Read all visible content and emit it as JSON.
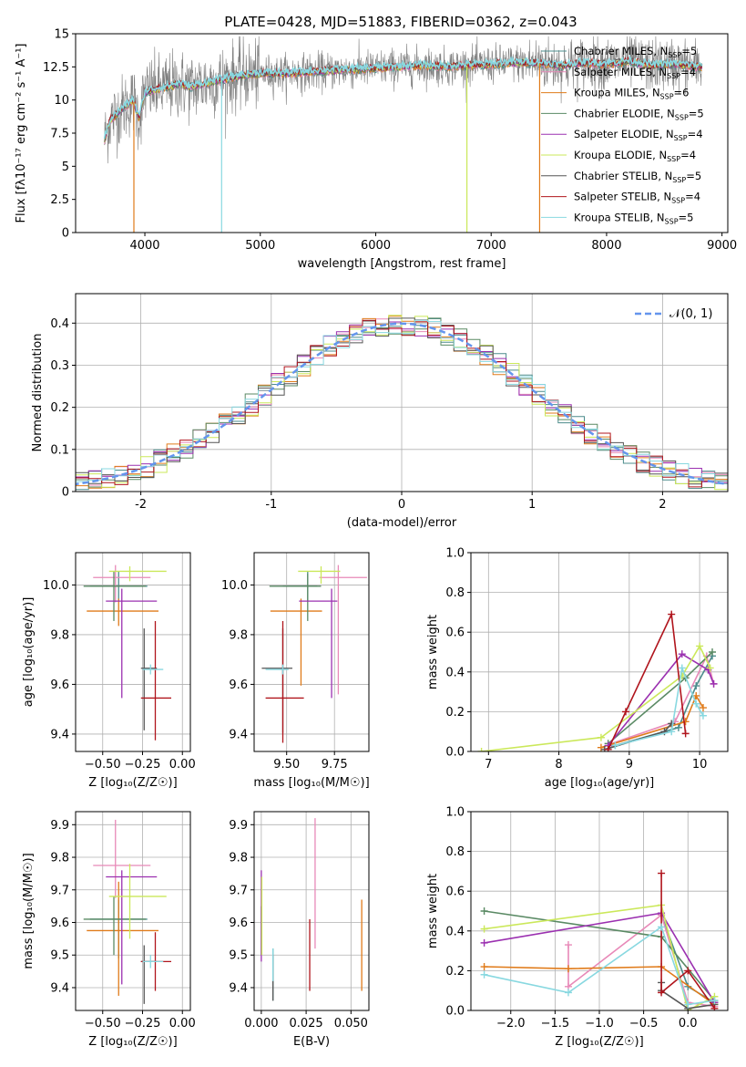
{
  "figure": {
    "title": "PLATE=0428, MJD=51883, FIBERID=0362, z=0.043"
  },
  "colors": {
    "grid": "#b0b0b0",
    "gaussian": "#6495ed"
  },
  "models": [
    {
      "name": "Chabrier MILES",
      "nssp": "5",
      "color": "#4c8c8c"
    },
    {
      "name": "Salpeter MILES",
      "nssp": "4",
      "color": "#e889b8"
    },
    {
      "name": "Kroupa MILES",
      "nssp": "6",
      "color": "#e07b1a"
    },
    {
      "name": "Chabrier ELODIE",
      "nssp": "5",
      "color": "#5a8a64"
    },
    {
      "name": "Salpeter ELODIE",
      "nssp": "4",
      "color": "#9b30b0"
    },
    {
      "name": "Kroupa ELODIE",
      "nssp": "4",
      "color": "#cbe85a"
    },
    {
      "name": "Chabrier STELIB",
      "nssp": "5",
      "color": "#555555"
    },
    {
      "name": "Salpeter STELIB",
      "nssp": "4",
      "color": "#b0141c"
    },
    {
      "name": "Kroupa STELIB",
      "nssp": "5",
      "color": "#88d8e0"
    }
  ],
  "chart_data": [
    {
      "id": "spectrum",
      "type": "line",
      "xlabel": "wavelength [Angstrom, rest frame]",
      "ylabel": "Flux [fλ10⁻¹⁷ erg cm⁻² s⁻¹ A⁻¹]",
      "xlim": [
        3400,
        9050
      ],
      "ylim": [
        0,
        15
      ],
      "xticks": [
        4000,
        5000,
        6000,
        7000,
        8000,
        9000
      ],
      "yticks": [
        0.0,
        2.5,
        5.0,
        7.5,
        10.0,
        12.5,
        15.0
      ],
      "grid": false,
      "legend": "upper right",
      "data_trend": {
        "x": [
          3650,
          3700,
          3800,
          3900,
          3950,
          4000,
          4100,
          4200,
          4300,
          4400,
          4600,
          4800,
          5000,
          5200,
          5400,
          5600,
          5800,
          6000,
          6200,
          6400,
          6600,
          6800,
          7000,
          7200,
          7400,
          7600,
          7800,
          8000,
          8200,
          8400,
          8600,
          8800
        ],
        "y": [
          7.0,
          8.5,
          9.3,
          10.0,
          8.6,
          10.6,
          10.8,
          11.0,
          11.2,
          11.0,
          11.4,
          11.8,
          12.0,
          12.0,
          12.1,
          12.2,
          12.3,
          12.4,
          12.5,
          12.6,
          12.5,
          12.6,
          12.7,
          12.8,
          12.8,
          12.6,
          12.8,
          12.7,
          12.9,
          12.6,
          12.7,
          12.5
        ]
      },
      "vertical_drops": [
        {
          "x": 3905,
          "model": "Kroupa MILES"
        },
        {
          "x": 4665,
          "model": "Kroupa STELIB"
        },
        {
          "x": 6790,
          "model": "Kroupa ELODIE"
        },
        {
          "x": 7420,
          "model": "Kroupa MILES"
        }
      ]
    },
    {
      "id": "residuals",
      "type": "histogram",
      "xlabel": "(data-model)/error",
      "ylabel": "Normed distribution",
      "xlim": [
        -2.5,
        2.5
      ],
      "ylim": [
        0,
        0.47
      ],
      "xticks": [
        -2,
        -1,
        0,
        1,
        2
      ],
      "yticks": [
        0.0,
        0.1,
        0.2,
        0.3,
        0.4
      ],
      "grid": true,
      "legend": "upper right",
      "gaussian_label": "𝒩(0, 1)",
      "bin_width": 0.1
    },
    {
      "id": "age-vs-z",
      "type": "scatter",
      "xlabel": "Z [log₁₀(Z/Z☉)]",
      "ylabel": "age  [log₁₀(age/yr)]",
      "xlim": [
        -0.67,
        0.05
      ],
      "ylim": [
        9.33,
        10.13
      ],
      "xticks": [
        -0.5,
        -0.25,
        0.0
      ],
      "xticklabels": [
        "−0.50",
        "−0.25",
        "0.00"
      ],
      "yticks": [
        9.4,
        9.6,
        9.8,
        10.0
      ],
      "yticklabels": [
        "9.4",
        "9.6",
        "9.8",
        "10.0"
      ],
      "grid": true,
      "points": [
        {
          "model": "Chabrier MILES",
          "x": -0.4,
          "xerr": [
            0.18,
            0.18
          ],
          "y": 9.995,
          "yerr": [
            0.06,
            0.06
          ]
        },
        {
          "model": "Salpeter MILES",
          "x": -0.42,
          "xerr": [
            0.14,
            0.22
          ],
          "y": 10.03,
          "yerr": [
            0.1,
            0.05
          ]
        },
        {
          "model": "Kroupa MILES",
          "x": -0.4,
          "xerr": [
            0.2,
            0.25
          ],
          "y": 9.895,
          "yerr": [
            0.06,
            0.05
          ]
        },
        {
          "model": "Chabrier ELODIE",
          "x": -0.43,
          "xerr": [
            0.19,
            0.2
          ],
          "y": 9.995,
          "yerr": [
            0.14,
            0.06
          ]
        },
        {
          "model": "Salpeter ELODIE",
          "x": -0.38,
          "xerr": [
            0.1,
            0.22
          ],
          "y": 9.935,
          "yerr": [
            0.39,
            0.05
          ]
        },
        {
          "model": "Kroupa ELODIE",
          "x": -0.33,
          "xerr": [
            0.13,
            0.23
          ],
          "y": 10.055,
          "yerr": [
            0.04,
            0.02
          ]
        },
        {
          "model": "Chabrier STELIB",
          "x": -0.24,
          "xerr": [
            0.02,
            0.08
          ],
          "y": 9.665,
          "yerr": [
            0.25,
            0.16
          ]
        },
        {
          "model": "Salpeter STELIB",
          "x": -0.17,
          "xerr": [
            0.09,
            0.1
          ],
          "y": 9.545,
          "yerr": [
            0.17,
            0.31
          ]
        },
        {
          "model": "Kroupa STELIB",
          "x": -0.2,
          "xerr": [
            0.05,
            0.08
          ],
          "y": 9.66,
          "yerr": [
            0.02,
            0.02
          ]
        }
      ]
    },
    {
      "id": "age-vs-mass",
      "type": "scatter",
      "xlabel": "mass [log₁₀(M/M☉)]",
      "ylabel": "",
      "xlim": [
        9.33,
        9.93
      ],
      "ylim": [
        9.33,
        10.13
      ],
      "xticks": [
        9.5,
        9.75
      ],
      "xticklabels": [
        "9.50",
        "9.75"
      ],
      "yticks": [
        9.4,
        9.6,
        9.8,
        10.0
      ],
      "yticklabels": [
        "9.4",
        "9.6",
        "9.8",
        "10.0"
      ],
      "grid": true,
      "points": [
        {
          "model": "Chabrier MILES",
          "x": 9.61,
          "xerr": [
            0.13,
            0.05
          ],
          "y": 9.995,
          "yerr": [
            0.06,
            0.06
          ]
        },
        {
          "model": "Salpeter MILES",
          "x": 9.77,
          "xerr": [
            0.1,
            0.15
          ],
          "y": 10.03,
          "yerr": [
            0.47,
            0.05
          ]
        },
        {
          "model": "Kroupa MILES",
          "x": 9.575,
          "xerr": [
            0.16,
            0.11
          ],
          "y": 9.895,
          "yerr": [
            0.3,
            0.05
          ]
        },
        {
          "model": "Chabrier ELODIE",
          "x": 9.61,
          "xerr": [
            0.2,
            0.07
          ],
          "y": 9.995,
          "yerr": [
            0.14,
            0.05
          ]
        },
        {
          "model": "Salpeter ELODIE",
          "x": 9.735,
          "xerr": [
            0.17,
            0.03
          ],
          "y": 9.935,
          "yerr": [
            0.39,
            0.05
          ]
        },
        {
          "model": "Kroupa ELODIE",
          "x": 9.68,
          "xerr": [
            0.12,
            0.1
          ],
          "y": 10.055,
          "yerr": [
            0.05,
            0.02
          ]
        },
        {
          "model": "Chabrier STELIB",
          "x": 9.48,
          "xerr": [
            0.11,
            0.05
          ],
          "y": 9.665,
          "yerr": [
            0.26,
            0.16
          ]
        },
        {
          "model": "Salpeter STELIB",
          "x": 9.48,
          "xerr": [
            0.09,
            0.11
          ],
          "y": 9.545,
          "yerr": [
            0.18,
            0.31
          ]
        },
        {
          "model": "Kroupa STELIB",
          "x": 9.48,
          "xerr": [
            0.09,
            0.03
          ],
          "y": 9.66,
          "yerr": [
            0.02,
            0.02
          ]
        }
      ]
    },
    {
      "id": "weight-vs-age",
      "type": "line",
      "xlabel": "age  [log₁₀(age/yr)]",
      "ylabel": "mass weight",
      "xlim": [
        6.75,
        10.4
      ],
      "ylim": [
        0,
        1
      ],
      "xticks": [
        7,
        8,
        9,
        10
      ],
      "xticklabels": [
        "7",
        "8",
        "9",
        "10"
      ],
      "yticks": [
        0.0,
        0.2,
        0.4,
        0.6,
        0.8,
        1.0
      ],
      "yticklabels": [
        "0.0",
        "0.2",
        "0.4",
        "0.6",
        "0.8",
        "1.0"
      ],
      "grid": true,
      "series": [
        {
          "model": "Chabrier MILES",
          "x": [
            8.8,
            9.7,
            9.95,
            10.18
          ],
          "y": [
            0.03,
            0.12,
            0.33,
            0.48
          ]
        },
        {
          "model": "Salpeter MILES",
          "x": [
            8.75,
            9.65,
            10.1,
            10.2
          ],
          "y": [
            0.04,
            0.15,
            0.48,
            0.34
          ]
        },
        {
          "model": "Kroupa MILES",
          "x": [
            8.6,
            9.8,
            9.95,
            10.05
          ],
          "y": [
            0.02,
            0.15,
            0.28,
            0.22
          ]
        },
        {
          "model": "Chabrier ELODIE",
          "x": [
            8.7,
            9.8,
            10.18
          ],
          "y": [
            0.04,
            0.37,
            0.5
          ]
        },
        {
          "model": "Salpeter ELODIE",
          "x": [
            8.7,
            9.75,
            10.12,
            10.2
          ],
          "y": [
            0.03,
            0.49,
            0.41,
            0.34
          ]
        },
        {
          "model": "Kroupa ELODIE",
          "x": [
            6.9,
            8.6,
            9.75,
            10.0,
            10.15
          ],
          "y": [
            0.0,
            0.07,
            0.38,
            0.53,
            0.42
          ]
        },
        {
          "model": "Chabrier STELIB",
          "x": [
            8.65,
            9.5,
            9.6
          ],
          "y": [
            0.01,
            0.1,
            0.14
          ]
        },
        {
          "model": "Salpeter STELIB",
          "x": [
            8.7,
            8.95,
            9.6,
            9.8
          ],
          "y": [
            0.01,
            0.2,
            0.69,
            0.09
          ]
        },
        {
          "model": "Kroupa STELIB",
          "x": [
            8.8,
            9.6,
            9.75,
            9.95,
            10.05
          ],
          "y": [
            0.03,
            0.1,
            0.42,
            0.24,
            0.18
          ]
        }
      ]
    },
    {
      "id": "mass-vs-z",
      "type": "scatter",
      "xlabel": "Z [log₁₀(Z/Z☉)]",
      "ylabel": "mass [log₁₀(M/M☉)]",
      "xlim": [
        -0.67,
        0.05
      ],
      "ylim": [
        9.33,
        9.94
      ],
      "xticks": [
        -0.5,
        -0.25,
        0.0
      ],
      "xticklabels": [
        "−0.50",
        "−0.25",
        "0.00"
      ],
      "yticks": [
        9.4,
        9.5,
        9.6,
        9.7,
        9.8,
        9.9
      ],
      "yticklabels": [
        "9.4",
        "9.5",
        "9.6",
        "9.7",
        "9.8",
        "9.9"
      ],
      "grid": true,
      "points": [
        {
          "model": "Chabrier MILES",
          "x": -0.4,
          "xerr": [
            0.18,
            0.18
          ],
          "y": 9.61,
          "yerr": [
            0.12,
            0.06
          ]
        },
        {
          "model": "Salpeter MILES",
          "x": -0.42,
          "xerr": [
            0.14,
            0.22
          ],
          "y": 9.775,
          "yerr": [
            0.1,
            0.14
          ]
        },
        {
          "model": "Kroupa MILES",
          "x": -0.4,
          "xerr": [
            0.2,
            0.25
          ],
          "y": 9.575,
          "yerr": [
            0.2,
            0.15
          ]
        },
        {
          "model": "Chabrier ELODIE",
          "x": -0.43,
          "xerr": [
            0.19,
            0.2
          ],
          "y": 9.61,
          "yerr": [
            0.11,
            0.07
          ]
        },
        {
          "model": "Salpeter ELODIE",
          "x": -0.38,
          "xerr": [
            0.1,
            0.22
          ],
          "y": 9.74,
          "yerr": [
            0.33,
            0.02
          ]
        },
        {
          "model": "Kroupa ELODIE",
          "x": -0.33,
          "xerr": [
            0.13,
            0.23
          ],
          "y": 9.68,
          "yerr": [
            0.13,
            0.1
          ]
        },
        {
          "model": "Chabrier STELIB",
          "x": -0.24,
          "xerr": [
            0.02,
            0.08
          ],
          "y": 9.48,
          "yerr": [
            0.13,
            0.05
          ]
        },
        {
          "model": "Salpeter STELIB",
          "x": -0.17,
          "xerr": [
            0.09,
            0.1
          ],
          "y": 9.48,
          "yerr": [
            0.09,
            0.09
          ]
        },
        {
          "model": "Kroupa STELIB",
          "x": -0.2,
          "xerr": [
            0.05,
            0.08
          ],
          "y": 9.48,
          "yerr": [
            0.02,
            0.02
          ]
        }
      ]
    },
    {
      "id": "mass-vs-ebv",
      "type": "scatter",
      "xlabel": "E(B-V)",
      "ylabel": "",
      "xlim": [
        -0.004,
        0.06
      ],
      "ylim": [
        9.33,
        9.94
      ],
      "xticks": [
        0.0,
        0.025,
        0.05
      ],
      "xticklabels": [
        "0.000",
        "0.025",
        "0.050"
      ],
      "yticks": [
        9.4,
        9.5,
        9.6,
        9.7,
        9.8,
        9.9
      ],
      "yticklabels": [
        "9.4",
        "9.5",
        "9.6",
        "9.7",
        "9.8",
        "9.9"
      ],
      "grid": true,
      "points": [
        {
          "model": "Chabrier MILES",
          "x": 0.0065,
          "y": 9.46,
          "yerr": [
            0.1,
            0.06
          ]
        },
        {
          "model": "Salpeter MILES",
          "x": 0.03,
          "y": 9.74,
          "yerr": [
            0.22,
            0.18
          ]
        },
        {
          "model": "Kroupa MILES",
          "x": 0.056,
          "y": 9.53,
          "yerr": [
            0.14,
            0.14
          ]
        },
        {
          "model": "Chabrier ELODIE",
          "x": 0.0,
          "y": 9.6,
          "yerr": [
            0.1,
            0.05
          ]
        },
        {
          "model": "Salpeter ELODIE",
          "x": 0.0,
          "y": 9.62,
          "yerr": [
            0.14,
            0.14
          ]
        },
        {
          "model": "Kroupa ELODIE",
          "x": 0.0003,
          "y": 9.62,
          "yerr": [
            0.12,
            0.12
          ]
        },
        {
          "model": "Chabrier STELIB",
          "x": 0.0065,
          "y": 9.44,
          "yerr": [
            0.08,
            0.06
          ]
        },
        {
          "model": "Salpeter STELIB",
          "x": 0.027,
          "y": 9.5,
          "yerr": [
            0.11,
            0.11
          ]
        },
        {
          "model": "Kroupa STELIB",
          "x": 0.0065,
          "y": 9.47,
          "yerr": [
            0.05,
            0.05
          ]
        }
      ]
    },
    {
      "id": "weight-vs-z",
      "type": "line",
      "xlabel": "Z [log₁₀(Z/Z☉)]",
      "ylabel": "mass weight",
      "xlim": [
        -2.45,
        0.45
      ],
      "ylim": [
        0,
        1
      ],
      "xticks": [
        -2.0,
        -1.5,
        -1.0,
        -0.5,
        0.0
      ],
      "xticklabels": [
        "−2.0",
        "−1.5",
        "−1.0",
        "−0.5",
        "0.0"
      ],
      "yticks": [
        0.0,
        0.2,
        0.4,
        0.6,
        0.8,
        1.0
      ],
      "yticklabels": [
        "0.0",
        "0.2",
        "0.4",
        "0.6",
        "0.8",
        "1.0"
      ],
      "grid": true,
      "series": [
        {
          "model": "Chabrier MILES",
          "x": [
            -0.3,
            0.0,
            0.3
          ],
          "y": [
            0.48,
            0.12,
            0.04
          ]
        },
        {
          "model": "Salpeter MILES",
          "x": [
            -1.35,
            -1.35,
            -0.3,
            0.0,
            0.3
          ],
          "y": [
            0.33,
            0.12,
            0.48,
            0.04,
            0.02
          ]
        },
        {
          "model": "Kroupa MILES",
          "x": [
            -2.3,
            -1.35,
            -0.3,
            0.3
          ],
          "y": [
            0.22,
            0.21,
            0.22,
            0.03
          ]
        },
        {
          "model": "Chabrier ELODIE",
          "x": [
            -2.3,
            -0.3,
            0.3
          ],
          "y": [
            0.5,
            0.37,
            0.05
          ]
        },
        {
          "model": "Salpeter ELODIE",
          "x": [
            -2.3,
            -0.3,
            0.3
          ],
          "y": [
            0.34,
            0.49,
            0.04
          ]
        },
        {
          "model": "Kroupa ELODIE",
          "x": [
            -2.3,
            -0.3,
            0.0,
            0.3
          ],
          "y": [
            0.41,
            0.53,
            0.0,
            0.07
          ]
        },
        {
          "model": "Chabrier STELIB",
          "x": [
            -0.3,
            -0.3,
            0.0,
            0.3
          ],
          "y": [
            0.14,
            0.1,
            0.01,
            0.03
          ]
        },
        {
          "model": "Salpeter STELIB",
          "x": [
            -0.3,
            -0.3,
            0.0,
            0.3
          ],
          "y": [
            0.69,
            0.09,
            0.2,
            0.01
          ]
        },
        {
          "model": "Kroupa STELIB",
          "x": [
            -2.3,
            -1.35,
            -0.3,
            0.0,
            0.3
          ],
          "y": [
            0.18,
            0.09,
            0.42,
            0.03,
            0.05
          ]
        }
      ]
    }
  ]
}
